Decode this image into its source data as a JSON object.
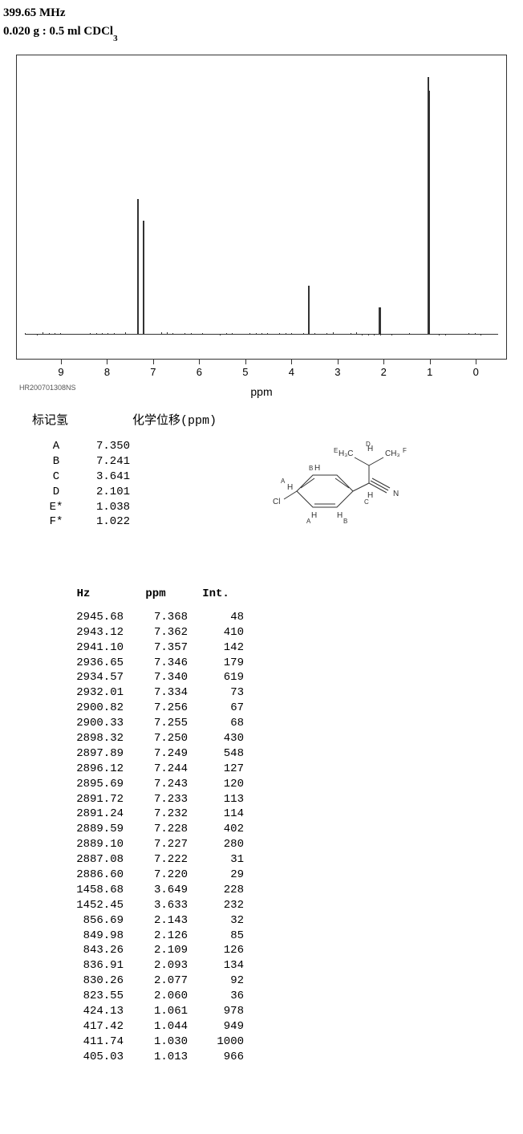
{
  "header": {
    "freq": "399.65 MHz",
    "sample_prefix": "0.020 g : 0.5 ml CDCl",
    "sample_sub": "3"
  },
  "spectrum": {
    "x_min": -0.5,
    "x_max": 9.8,
    "ticks": [
      9,
      8,
      7,
      6,
      5,
      4,
      3,
      2,
      1,
      0
    ],
    "axis_label": "ppm",
    "footer_code": "HR200701308NS",
    "baseline_color": "#333333",
    "peaks": [
      {
        "ppm": 7.35,
        "h": 0.5,
        "w": 2
      },
      {
        "ppm": 7.24,
        "h": 0.42,
        "w": 2
      },
      {
        "ppm": 3.64,
        "h": 0.18,
        "w": 2
      },
      {
        "ppm": 2.1,
        "h": 0.1,
        "w": 3
      },
      {
        "ppm": 1.04,
        "h": 0.95,
        "w": 2
      },
      {
        "ppm": 1.02,
        "h": 0.9,
        "w": 2
      }
    ]
  },
  "assignments": {
    "header_left": "标记氢",
    "header_right": "化学位移(ppm)",
    "rows": [
      {
        "label": "A",
        "ppm": "7.350"
      },
      {
        "label": "B",
        "ppm": "7.241"
      },
      {
        "label": "C",
        "ppm": "3.641"
      },
      {
        "label": "D",
        "ppm": "2.101"
      },
      {
        "label": "E*",
        "ppm": "1.038"
      },
      {
        "label": "F*",
        "ppm": "1.022"
      }
    ]
  },
  "molecule": {
    "labels": {
      "E": "H₃C",
      "F": "CH₃",
      "D": "H",
      "B": "H",
      "A": "H",
      "C_atom": "H",
      "Cl": "Cl",
      "N": "N"
    }
  },
  "peak_table": {
    "headers": {
      "hz": "Hz",
      "ppm": "ppm",
      "int": "Int."
    },
    "rows": [
      {
        "hz": "2945.68",
        "ppm": "7.368",
        "int": "48"
      },
      {
        "hz": "2943.12",
        "ppm": "7.362",
        "int": "410"
      },
      {
        "hz": "2941.10",
        "ppm": "7.357",
        "int": "142"
      },
      {
        "hz": "2936.65",
        "ppm": "7.346",
        "int": "179"
      },
      {
        "hz": "2934.57",
        "ppm": "7.340",
        "int": "619"
      },
      {
        "hz": "2932.01",
        "ppm": "7.334",
        "int": "73"
      },
      {
        "hz": "2900.82",
        "ppm": "7.256",
        "int": "67"
      },
      {
        "hz": "2900.33",
        "ppm": "7.255",
        "int": "68"
      },
      {
        "hz": "2898.32",
        "ppm": "7.250",
        "int": "430"
      },
      {
        "hz": "2897.89",
        "ppm": "7.249",
        "int": "548"
      },
      {
        "hz": "2896.12",
        "ppm": "7.244",
        "int": "127"
      },
      {
        "hz": "2895.69",
        "ppm": "7.243",
        "int": "120"
      },
      {
        "hz": "2891.72",
        "ppm": "7.233",
        "int": "113"
      },
      {
        "hz": "2891.24",
        "ppm": "7.232",
        "int": "114"
      },
      {
        "hz": "2889.59",
        "ppm": "7.228",
        "int": "402"
      },
      {
        "hz": "2889.10",
        "ppm": "7.227",
        "int": "280"
      },
      {
        "hz": "2887.08",
        "ppm": "7.222",
        "int": "31"
      },
      {
        "hz": "2886.60",
        "ppm": "7.220",
        "int": "29"
      },
      {
        "hz": "1458.68",
        "ppm": "3.649",
        "int": "228"
      },
      {
        "hz": "1452.45",
        "ppm": "3.633",
        "int": "232"
      },
      {
        "hz": "856.69",
        "ppm": "2.143",
        "int": "32"
      },
      {
        "hz": "849.98",
        "ppm": "2.126",
        "int": "85"
      },
      {
        "hz": "843.26",
        "ppm": "2.109",
        "int": "126"
      },
      {
        "hz": "836.91",
        "ppm": "2.093",
        "int": "134"
      },
      {
        "hz": "830.26",
        "ppm": "2.077",
        "int": "92"
      },
      {
        "hz": "823.55",
        "ppm": "2.060",
        "int": "36"
      },
      {
        "hz": "424.13",
        "ppm": "1.061",
        "int": "978"
      },
      {
        "hz": "417.42",
        "ppm": "1.044",
        "int": "949"
      },
      {
        "hz": "411.74",
        "ppm": "1.030",
        "int": "1000"
      },
      {
        "hz": "405.03",
        "ppm": "1.013",
        "int": "966"
      }
    ]
  }
}
